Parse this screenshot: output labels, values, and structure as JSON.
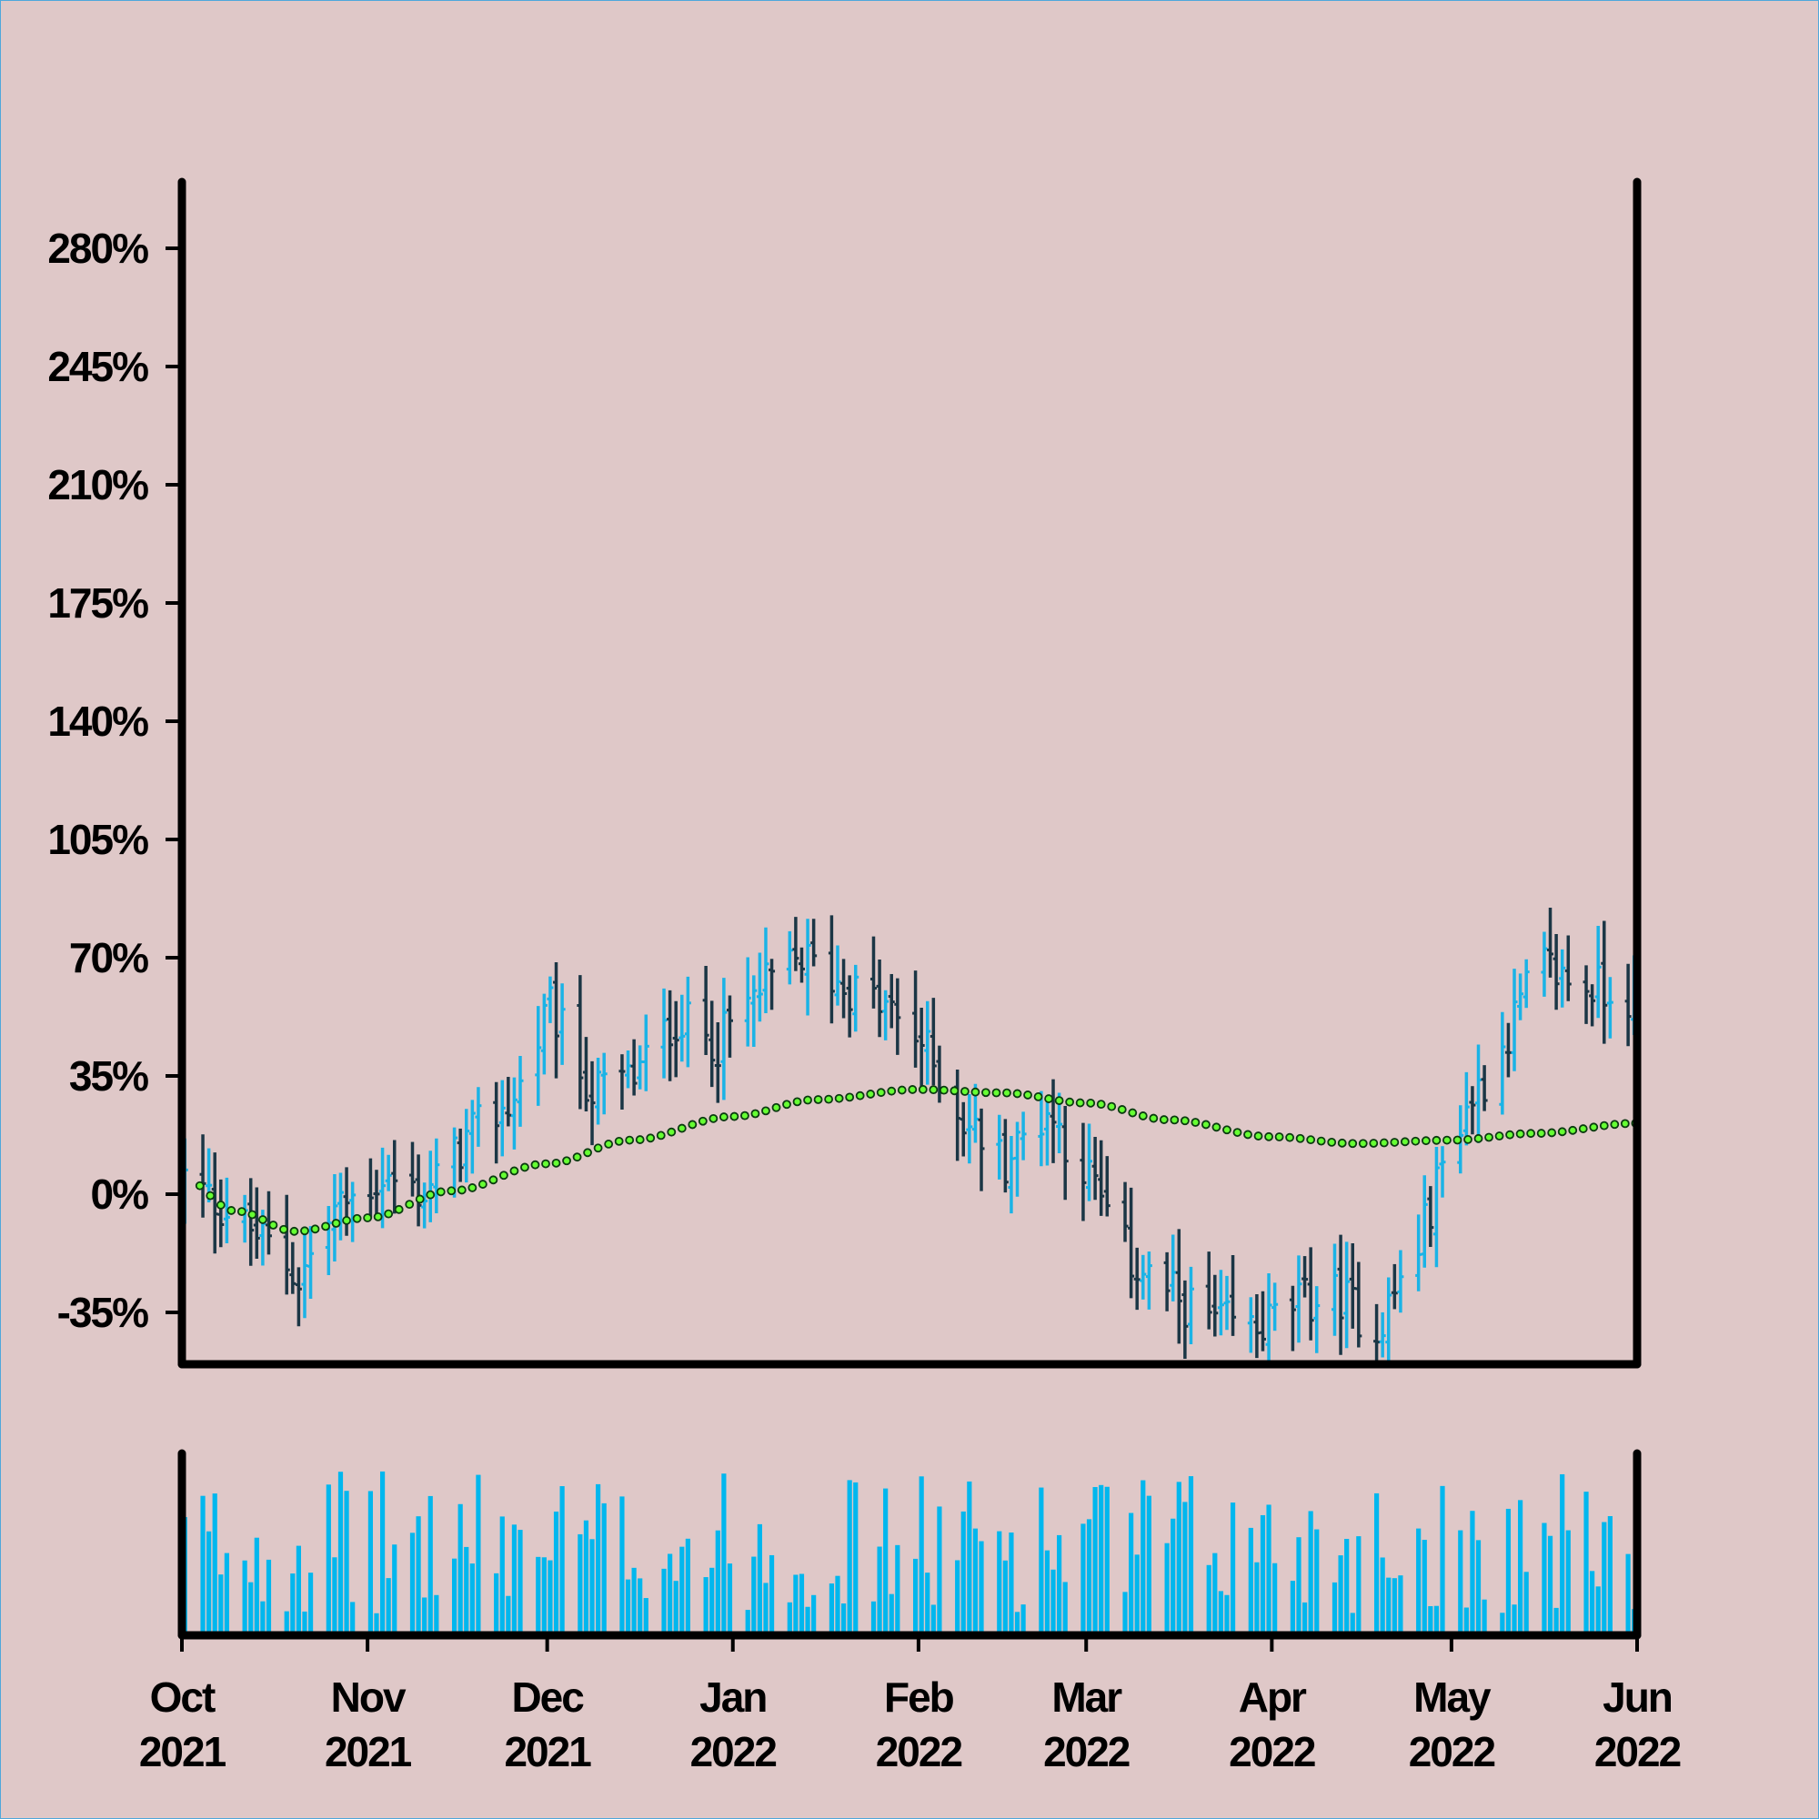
{
  "chart_data": {
    "type": "ohlc",
    "title": "",
    "xlabel": "",
    "ylabel": "",
    "colors": {
      "background": "#dfc8c8",
      "border": "#4ea8dc",
      "up_bar": "#1ab3e6",
      "down_bar": "#1b3645",
      "moving_average_fill": "#66ff33",
      "moving_average_edge": "#0b3a10",
      "volume": "#00b7ee",
      "axis": "#000000"
    },
    "price_panel": {
      "ylim": [
        -49,
        300
      ],
      "y_ticks": [
        {
          "value": 280,
          "label": "280%"
        },
        {
          "value": 245,
          "label": "245%"
        },
        {
          "value": 210,
          "label": "210%"
        },
        {
          "value": 175,
          "label": "175%"
        },
        {
          "value": 140,
          "label": "140%"
        },
        {
          "value": 105,
          "label": "105%"
        },
        {
          "value": 70,
          "label": "70%"
        },
        {
          "value": 35,
          "label": "35%"
        },
        {
          "value": 0,
          "label": "0%"
        },
        {
          "value": -35,
          "label": "-35%"
        }
      ],
      "date_range": [
        "2021-10-01",
        "2022-06-01"
      ],
      "close_anchors": [
        [
          "2021-10-01",
          5
        ],
        [
          "2021-10-08",
          -5
        ],
        [
          "2021-10-15",
          -15
        ],
        [
          "2021-10-20",
          -25
        ],
        [
          "2021-10-26",
          -5
        ],
        [
          "2021-11-03",
          5
        ],
        [
          "2021-11-10",
          0
        ],
        [
          "2021-11-18",
          18
        ],
        [
          "2021-11-25",
          28
        ],
        [
          "2021-12-01",
          55
        ],
        [
          "2021-12-08",
          30
        ],
        [
          "2021-12-15",
          35
        ],
        [
          "2021-12-22",
          52
        ],
        [
          "2021-12-29",
          45
        ],
        [
          "2022-01-05",
          60
        ],
        [
          "2022-01-12",
          70
        ],
        [
          "2022-01-19",
          62
        ],
        [
          "2022-01-26",
          55
        ],
        [
          "2022-02-01",
          45
        ],
        [
          "2022-02-08",
          22
        ],
        [
          "2022-02-15",
          10
        ],
        [
          "2022-02-22",
          25
        ],
        [
          "2022-03-01",
          5
        ],
        [
          "2022-03-08",
          -20
        ],
        [
          "2022-03-15",
          -30
        ],
        [
          "2022-03-22",
          -38
        ],
        [
          "2022-03-29",
          -40
        ],
        [
          "2022-04-05",
          -32
        ],
        [
          "2022-04-12",
          -30
        ],
        [
          "2022-04-18",
          -40
        ],
        [
          "2022-04-25",
          -15
        ],
        [
          "2022-05-01",
          20
        ],
        [
          "2022-05-08",
          40
        ],
        [
          "2022-05-15",
          68
        ],
        [
          "2022-05-22",
          62
        ],
        [
          "2022-05-29",
          60
        ],
        [
          "2022-06-01",
          58
        ]
      ],
      "moving_average": [
        [
          "2021-10-01",
          5
        ],
        [
          "2021-10-10",
          -5
        ],
        [
          "2021-10-20",
          -11
        ],
        [
          "2021-11-01",
          -7
        ],
        [
          "2021-11-15",
          1
        ],
        [
          "2021-12-01",
          9
        ],
        [
          "2021-12-15",
          16
        ],
        [
          "2022-01-01",
          23
        ],
        [
          "2022-01-15",
          28
        ],
        [
          "2022-02-01",
          31
        ],
        [
          "2022-02-15",
          30
        ],
        [
          "2022-03-01",
          27
        ],
        [
          "2022-03-15",
          22
        ],
        [
          "2022-04-01",
          17
        ],
        [
          "2022-04-15",
          15
        ],
        [
          "2022-05-01",
          16
        ],
        [
          "2022-05-15",
          18
        ],
        [
          "2022-06-01",
          21
        ]
      ]
    },
    "volume_panel": {
      "ylim": [
        0,
        1
      ],
      "note_values": "relative daily volume, roughly uniform 0.1-0.95"
    },
    "x_ticks": [
      {
        "date": "2021-10-01",
        "month": "Oct",
        "year": "2021"
      },
      {
        "date": "2021-11-01",
        "month": "Nov",
        "year": "2021"
      },
      {
        "date": "2021-12-01",
        "month": "Dec",
        "year": "2021"
      },
      {
        "date": "2022-01-01",
        "month": "Jan",
        "year": "2022"
      },
      {
        "date": "2022-02-01",
        "month": "Feb",
        "year": "2022"
      },
      {
        "date": "2022-03-01",
        "month": "Mar",
        "year": "2022"
      },
      {
        "date": "2022-04-01",
        "month": "Apr",
        "year": "2022"
      },
      {
        "date": "2022-05-01",
        "month": "May",
        "year": "2022"
      },
      {
        "date": "2022-06-01",
        "month": "Jun",
        "year": "2022"
      }
    ]
  }
}
